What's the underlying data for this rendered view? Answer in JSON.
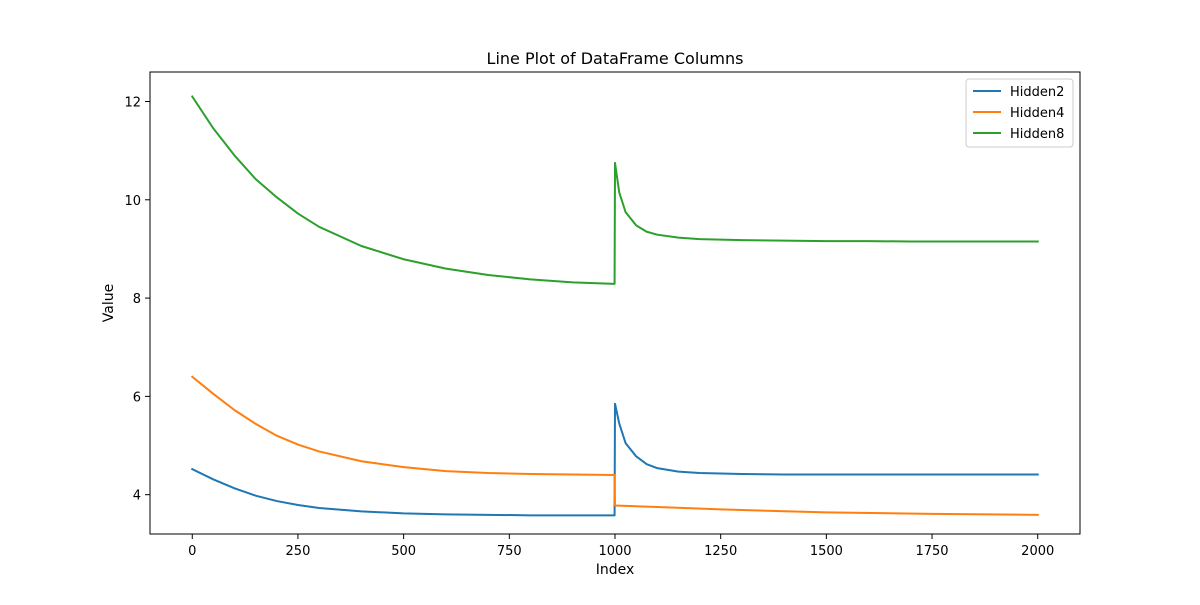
{
  "chart_data": {
    "type": "line",
    "title": "Line Plot of DataFrame Columns",
    "xlabel": "Index",
    "ylabel": "Value",
    "xlim": [
      -100,
      2100
    ],
    "ylim": [
      3.2,
      12.6
    ],
    "xticks": [
      0,
      250,
      500,
      750,
      1000,
      1250,
      1500,
      1750,
      2000
    ],
    "yticks": [
      4,
      6,
      8,
      10,
      12
    ],
    "grid": false,
    "legend_position": "top-right",
    "series": [
      {
        "name": "Hidden2",
        "color": "#1f77b4",
        "x": [
          0,
          50,
          100,
          150,
          200,
          250,
          300,
          400,
          500,
          600,
          700,
          800,
          900,
          999,
          1000,
          1010,
          1025,
          1050,
          1075,
          1100,
          1150,
          1200,
          1300,
          1400,
          1500,
          1600,
          1700,
          1800,
          1900,
          2000
        ],
        "y": [
          4.52,
          4.31,
          4.13,
          3.98,
          3.87,
          3.79,
          3.73,
          3.66,
          3.62,
          3.6,
          3.59,
          3.58,
          3.58,
          3.58,
          5.85,
          5.45,
          5.05,
          4.78,
          4.62,
          4.54,
          4.47,
          4.44,
          4.42,
          4.41,
          4.41,
          4.41,
          4.41,
          4.41,
          4.41,
          4.41
        ]
      },
      {
        "name": "Hidden4",
        "color": "#ff7f0e",
        "x": [
          0,
          50,
          100,
          150,
          200,
          250,
          300,
          400,
          500,
          600,
          700,
          800,
          900,
          999,
          1000,
          1100,
          1250,
          1500,
          1750,
          2000
        ],
        "y": [
          6.4,
          6.05,
          5.72,
          5.44,
          5.2,
          5.02,
          4.88,
          4.68,
          4.56,
          4.48,
          4.44,
          4.42,
          4.41,
          4.4,
          3.78,
          3.75,
          3.7,
          3.64,
          3.61,
          3.59
        ]
      },
      {
        "name": "Hidden8",
        "color": "#2ca02c",
        "x": [
          0,
          50,
          100,
          150,
          200,
          250,
          300,
          400,
          500,
          600,
          700,
          800,
          900,
          999,
          1000,
          1010,
          1025,
          1050,
          1075,
          1100,
          1150,
          1200,
          1300,
          1400,
          1500,
          1600,
          1700,
          1800,
          1900,
          2000
        ],
        "y": [
          12.1,
          11.45,
          10.9,
          10.42,
          10.05,
          9.72,
          9.45,
          9.06,
          8.79,
          8.6,
          8.47,
          8.38,
          8.32,
          8.29,
          10.75,
          10.15,
          9.75,
          9.48,
          9.35,
          9.29,
          9.23,
          9.2,
          9.18,
          9.17,
          9.16,
          9.16,
          9.15,
          9.15,
          9.15,
          9.15
        ]
      }
    ]
  }
}
